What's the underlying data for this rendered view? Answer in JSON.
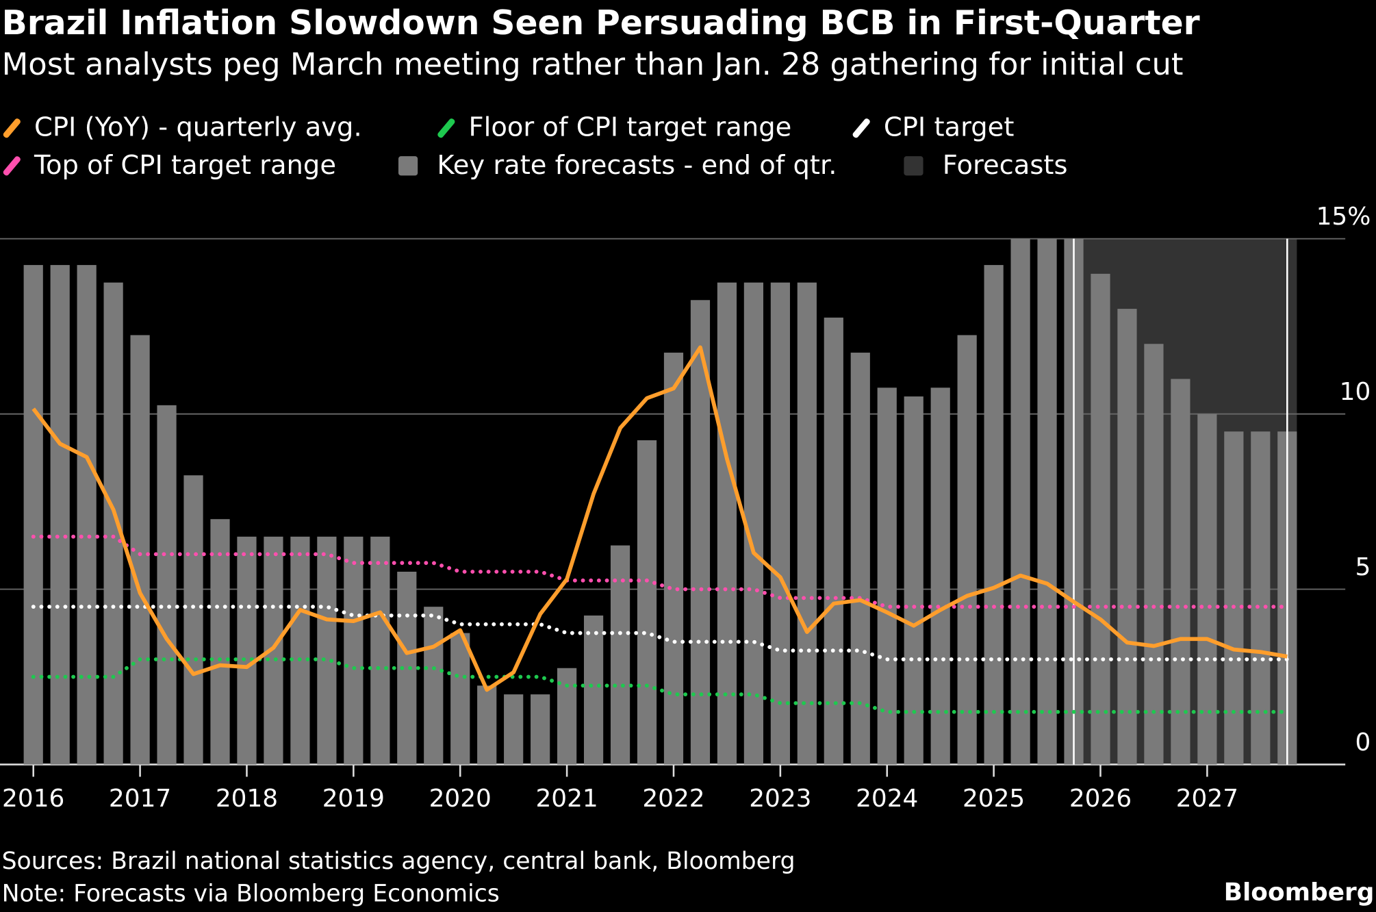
{
  "header": {
    "title": "Brazil Inflation Slowdown Seen Persuading BCB in First-Quarter",
    "subtitle": "Most analysts peg March meeting rather than Jan. 28 gathering for initial cut"
  },
  "footer": {
    "sources": "Sources: Brazil national statistics agency, central bank, Bloomberg",
    "note": "Note: Forecasts via Bloomberg Economics",
    "brand": "Bloomberg"
  },
  "chart_data": {
    "type": "bar",
    "x_frequency": "quarterly",
    "x_start": "2016 Q1",
    "x_end": "2027 Q4",
    "x_tick_labels": [
      "2016",
      "2017",
      "2018",
      "2019",
      "2020",
      "2021",
      "2022",
      "2023",
      "2024",
      "2025",
      "2026",
      "2027"
    ],
    "y_tick_labels": [
      "0",
      "5",
      "10",
      "15%"
    ],
    "ylim": [
      0,
      15
    ],
    "y_axis_side": "right",
    "grid": true,
    "legend_placement": "top",
    "forecast_region": {
      "label": "Forecasts",
      "start": "2025 Q4",
      "end": "2027 Q4",
      "color": "#333333"
    },
    "series": [
      {
        "name": "Key rate forecasts - end of qtr.",
        "type": "bar",
        "color": "#7a7a7a",
        "values": [
          14.25,
          14.25,
          14.25,
          13.75,
          12.25,
          10.25,
          8.25,
          7.0,
          6.5,
          6.5,
          6.5,
          6.5,
          6.5,
          6.5,
          5.5,
          4.5,
          3.75,
          2.25,
          2.0,
          2.0,
          2.75,
          4.25,
          6.25,
          9.25,
          11.75,
          13.25,
          13.75,
          13.75,
          13.75,
          13.75,
          12.75,
          11.75,
          10.75,
          10.5,
          10.75,
          12.25,
          14.25,
          15.0,
          15.0,
          15.0,
          14.0,
          13.0,
          12.0,
          11.0,
          10.0,
          9.5,
          9.5,
          9.5
        ]
      },
      {
        "name": "CPI (YoY) - quarterly avg.",
        "type": "line",
        "color": "#ff9e2c",
        "values": [
          10.15,
          9.15,
          8.77,
          7.27,
          4.89,
          3.58,
          2.58,
          2.83,
          2.78,
          3.33,
          4.41,
          4.14,
          4.09,
          4.34,
          3.18,
          3.36,
          3.83,
          2.13,
          2.63,
          4.29,
          5.29,
          7.72,
          9.6,
          10.45,
          10.73,
          11.9,
          8.72,
          6.04,
          5.34,
          3.78,
          4.59,
          4.69,
          4.34,
          3.96,
          4.41,
          4.81,
          5.04,
          5.39,
          5.16,
          4.64,
          4.14,
          3.48,
          3.38,
          3.58,
          3.58,
          3.28,
          3.21,
          3.08
        ]
      },
      {
        "name": "Top of CPI target range",
        "type": "dotted-line",
        "color": "#ff4fae",
        "values": [
          6.5,
          6.5,
          6.5,
          6.5,
          6.0,
          6.0,
          6.0,
          6.0,
          6.0,
          6.0,
          6.0,
          6.0,
          5.75,
          5.75,
          5.75,
          5.75,
          5.5,
          5.5,
          5.5,
          5.5,
          5.25,
          5.25,
          5.25,
          5.25,
          5.0,
          5.0,
          5.0,
          5.0,
          4.75,
          4.75,
          4.75,
          4.75,
          4.5,
          4.5,
          4.5,
          4.5,
          4.5,
          4.5,
          4.5,
          4.5,
          4.5,
          4.5,
          4.5,
          4.5,
          4.5,
          4.5,
          4.5,
          4.5
        ]
      },
      {
        "name": "CPI target",
        "type": "dotted-line",
        "color": "#ffffff",
        "values": [
          4.5,
          4.5,
          4.5,
          4.5,
          4.5,
          4.5,
          4.5,
          4.5,
          4.5,
          4.5,
          4.5,
          4.5,
          4.25,
          4.25,
          4.25,
          4.25,
          4.0,
          4.0,
          4.0,
          4.0,
          3.75,
          3.75,
          3.75,
          3.75,
          3.5,
          3.5,
          3.5,
          3.5,
          3.25,
          3.25,
          3.25,
          3.25,
          3.0,
          3.0,
          3.0,
          3.0,
          3.0,
          3.0,
          3.0,
          3.0,
          3.0,
          3.0,
          3.0,
          3.0,
          3.0,
          3.0,
          3.0,
          3.0
        ]
      },
      {
        "name": "Floor of CPI target range",
        "type": "dotted-line",
        "color": "#1ec94f",
        "values": [
          2.5,
          2.5,
          2.5,
          2.5,
          3.0,
          3.0,
          3.0,
          3.0,
          3.0,
          3.0,
          3.0,
          3.0,
          2.75,
          2.75,
          2.75,
          2.75,
          2.5,
          2.5,
          2.5,
          2.5,
          2.25,
          2.25,
          2.25,
          2.25,
          2.0,
          2.0,
          2.0,
          2.0,
          1.75,
          1.75,
          1.75,
          1.75,
          1.5,
          1.5,
          1.5,
          1.5,
          1.5,
          1.5,
          1.5,
          1.5,
          1.5,
          1.5,
          1.5,
          1.5,
          1.5,
          1.5,
          1.5,
          1.5
        ]
      }
    ]
  }
}
